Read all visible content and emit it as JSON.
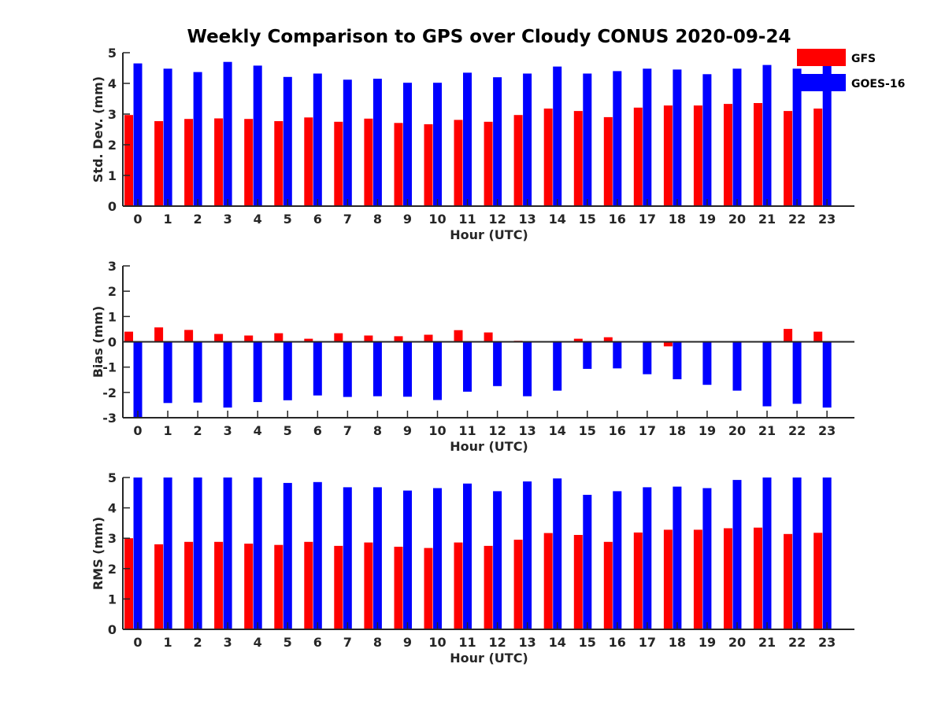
{
  "title": "Weekly Comparison to GPS over Cloudy CONUS 2020-09-24",
  "legend": [
    {
      "label": "GFS",
      "color": "#ff0000"
    },
    {
      "label": "GOES-16",
      "color": "#0000ff"
    }
  ],
  "chart_data": [
    {
      "type": "bar",
      "ylabel": "Std. Dev. (mm)",
      "xlabel": "Hour (UTC)",
      "ylim": [
        0,
        5
      ],
      "yticks": [
        0,
        1,
        2,
        3,
        4,
        5
      ],
      "categories": [
        "0",
        "1",
        "2",
        "3",
        "4",
        "5",
        "6",
        "7",
        "8",
        "9",
        "10",
        "11",
        "12",
        "13",
        "14",
        "15",
        "16",
        "17",
        "18",
        "19",
        "20",
        "21",
        "22",
        "23"
      ],
      "series": [
        {
          "name": "GFS",
          "color": "#ff0000",
          "values": [
            2.97,
            2.77,
            2.84,
            2.86,
            2.84,
            2.77,
            2.89,
            2.75,
            2.85,
            2.71,
            2.67,
            2.81,
            2.75,
            2.97,
            3.18,
            3.1,
            2.9,
            3.21,
            3.28,
            3.28,
            3.33,
            3.36,
            3.1,
            3.18
          ]
        },
        {
          "name": "GOES-16",
          "color": "#0000ff",
          "values": [
            4.65,
            4.48,
            4.37,
            4.7,
            4.58,
            4.21,
            4.32,
            4.12,
            4.15,
            4.02,
            4.02,
            4.35,
            4.2,
            4.32,
            4.55,
            4.32,
            4.4,
            4.48,
            4.45,
            4.3,
            4.48,
            4.6,
            4.48,
            4.62
          ]
        }
      ]
    },
    {
      "type": "bar",
      "ylabel": "Bias (mm)",
      "xlabel": "Hour (UTC)",
      "ylim": [
        -3,
        3
      ],
      "yticks": [
        -3,
        -2,
        -1,
        0,
        1,
        2,
        3
      ],
      "categories": [
        "0",
        "1",
        "2",
        "3",
        "4",
        "5",
        "6",
        "7",
        "8",
        "9",
        "10",
        "11",
        "12",
        "13",
        "14",
        "15",
        "16",
        "17",
        "18",
        "19",
        "20",
        "21",
        "22",
        "23"
      ],
      "series": [
        {
          "name": "GFS",
          "color": "#ff0000",
          "values": [
            0.4,
            0.57,
            0.47,
            0.31,
            0.25,
            0.34,
            0.12,
            0.34,
            0.25,
            0.22,
            0.28,
            0.46,
            0.37,
            0.04,
            0.0,
            0.12,
            0.18,
            0.0,
            -0.18,
            0.03,
            0.0,
            0.0,
            0.51,
            0.4
          ]
        },
        {
          "name": "GOES-16",
          "color": "#0000ff",
          "values": [
            -3.0,
            -2.42,
            -2.4,
            -2.6,
            -2.38,
            -2.31,
            -2.12,
            -2.18,
            -2.15,
            -2.17,
            -2.3,
            -1.97,
            -1.75,
            -2.15,
            -1.93,
            -1.07,
            -1.05,
            -1.28,
            -1.48,
            -1.7,
            -1.93,
            -2.55,
            -2.45,
            -2.6
          ]
        }
      ]
    },
    {
      "type": "bar",
      "ylabel": "RMS (mm)",
      "xlabel": "Hour (UTC)",
      "ylim": [
        0,
        5
      ],
      "yticks": [
        0,
        1,
        2,
        3,
        4,
        5
      ],
      "categories": [
        "0",
        "1",
        "2",
        "3",
        "4",
        "5",
        "6",
        "7",
        "8",
        "9",
        "10",
        "11",
        "12",
        "13",
        "14",
        "15",
        "16",
        "17",
        "18",
        "19",
        "20",
        "21",
        "22",
        "23"
      ],
      "series": [
        {
          "name": "GFS",
          "color": "#ff0000",
          "values": [
            3.0,
            2.8,
            2.88,
            2.88,
            2.82,
            2.78,
            2.88,
            2.75,
            2.86,
            2.72,
            2.68,
            2.86,
            2.75,
            2.95,
            3.17,
            3.11,
            2.88,
            3.19,
            3.28,
            3.28,
            3.33,
            3.35,
            3.14,
            3.18
          ]
        },
        {
          "name": "GOES-16",
          "color": "#0000ff",
          "values": [
            5.0,
            5.0,
            5.0,
            5.0,
            5.0,
            4.82,
            4.85,
            4.68,
            4.68,
            4.57,
            4.65,
            4.8,
            4.55,
            4.87,
            4.97,
            4.43,
            4.55,
            4.68,
            4.7,
            4.65,
            4.92,
            5.0,
            5.0,
            5.0
          ]
        }
      ]
    }
  ]
}
